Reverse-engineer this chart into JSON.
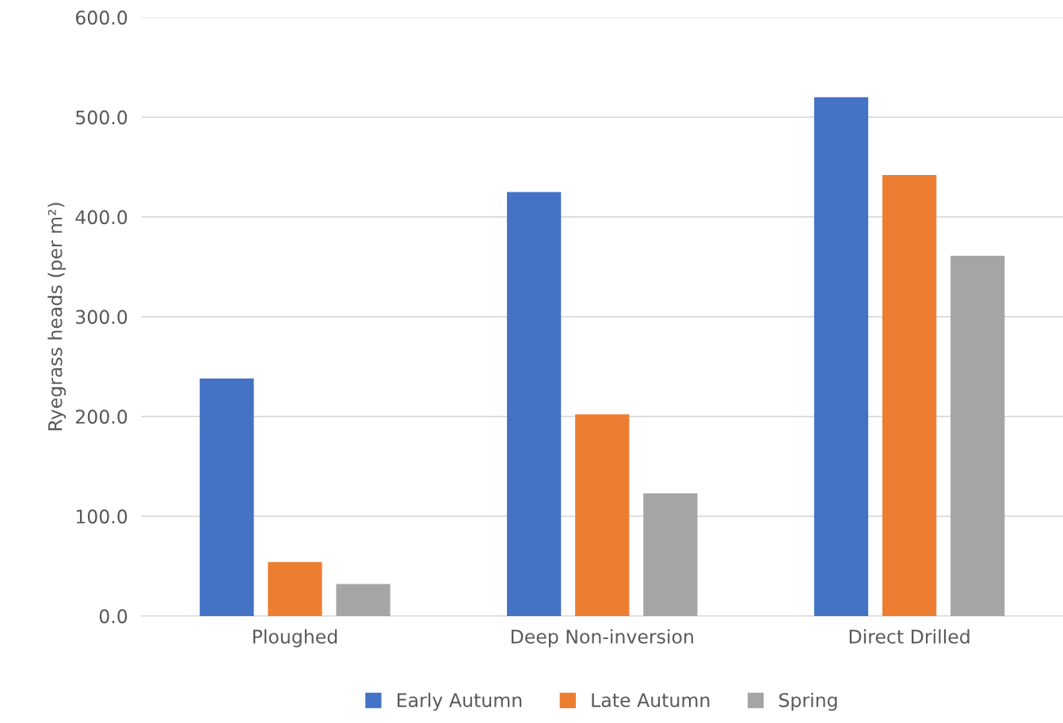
{
  "chart_data": {
    "type": "bar",
    "ylabel": "Ryegrass heads (per m²)",
    "categories": [
      "Ploughed",
      "Deep Non-inversion",
      "Direct Drilled"
    ],
    "series": [
      {
        "name": "Early Autumn",
        "color": "#4472c4",
        "values": [
          238,
          425,
          520
        ]
      },
      {
        "name": "Late Autumn",
        "color": "#ed7d31",
        "values": [
          54,
          202,
          442
        ]
      },
      {
        "name": "Spring",
        "color": "#a5a5a5",
        "values": [
          32,
          123,
          361
        ]
      }
    ],
    "ylim": [
      0,
      600
    ],
    "yticks": [
      {
        "value": 0,
        "label": "0.0"
      },
      {
        "value": 100,
        "label": "100.0"
      },
      {
        "value": 200,
        "label": "200.0"
      },
      {
        "value": 300,
        "label": "300.0"
      },
      {
        "value": 400,
        "label": "400.0"
      },
      {
        "value": 500,
        "label": "500.0"
      },
      {
        "value": 600,
        "label": "600.0"
      }
    ],
    "grid": "y",
    "legend": "bottom"
  }
}
